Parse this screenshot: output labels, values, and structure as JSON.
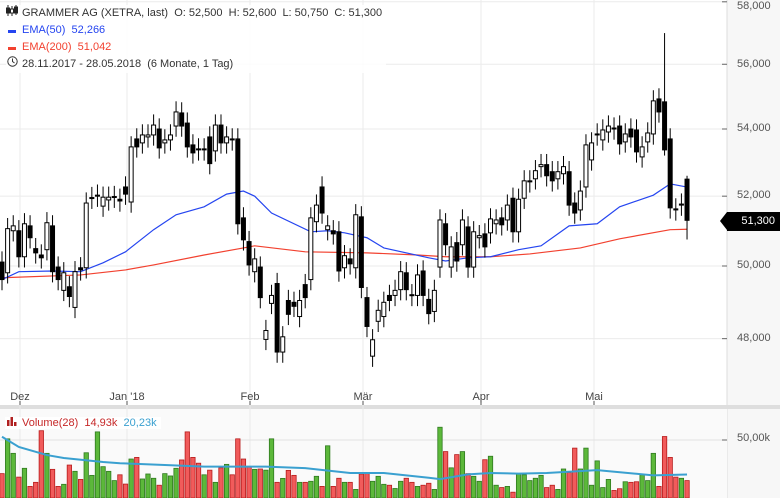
{
  "legend": {
    "title": "GRAMMER AG (XETRA, last)",
    "ohlc": "O: 52,500  H: 52,600  L: 50,750  C: 51,300",
    "ema50_label": "EMA(50)",
    "ema50_value": "52,266",
    "ema200_label": "EMA(200)",
    "ema200_value": "51,042",
    "range": "28.11.2017 - 28.05.2018",
    "period": "(6 Monate, 1 Tag)"
  },
  "volume_legend": {
    "label": "Volume(28)",
    "value": "14,93k",
    "ma_value": "20,23k"
  },
  "last_price": "51,300",
  "colors": {
    "ema50": "#2545f0",
    "ema200": "#f2412f",
    "vol_up": "#5cb83a",
    "vol_down": "#f15b5b",
    "vol_ma": "#3aa0d0"
  },
  "chart_data": {
    "type": "candlestick",
    "title": "GRAMMER AG (XETRA, last)",
    "x_ticks": [
      "Dez",
      "Jan '18",
      "Feb",
      "Mär",
      "Apr",
      "Mai"
    ],
    "y_ticks": [
      "58,000",
      "56,000",
      "54,000",
      "52,000",
      "50,000",
      "48,000"
    ],
    "y_tick_values": [
      58000,
      56000,
      54000,
      52000,
      50000,
      48000
    ],
    "scale": "log",
    "grid": true,
    "candles": [
      [
        50110,
        49620
      ],
      [
        49810,
        51060
      ],
      [
        51000,
        51140
      ],
      [
        51000,
        50260
      ],
      [
        50260,
        51200
      ],
      [
        51140,
        50800
      ],
      [
        50490,
        50370
      ],
      [
        50310,
        50230
      ],
      [
        50460,
        51230
      ],
      [
        51140,
        49840
      ],
      [
        49970,
        49620
      ],
      [
        49320,
        49810
      ],
      [
        49420,
        49150
      ],
      [
        48850,
        49840
      ],
      [
        49950,
        49890
      ],
      [
        49950,
        51800
      ],
      [
        51940,
        51960
      ],
      [
        52000,
        52030
      ],
      [
        51710,
        51970
      ],
      [
        51890,
        51970
      ],
      [
        51970,
        51990
      ],
      [
        51910,
        51860
      ],
      [
        52270,
        52060
      ],
      [
        51830,
        53460
      ],
      [
        53700,
        53460
      ],
      [
        53580,
        53820
      ],
      [
        53760,
        53820
      ],
      [
        53820,
        54120
      ],
      [
        54000,
        53430
      ],
      [
        53580,
        53670
      ],
      [
        53670,
        53820
      ],
      [
        54090,
        54520
      ],
      [
        54490,
        54090
      ],
      [
        54180,
        53460
      ],
      [
        53520,
        53280
      ],
      [
        53400,
        53370
      ],
      [
        53370,
        53400
      ],
      [
        53760,
        52960
      ],
      [
        53340,
        54120
      ],
      [
        54120,
        53580
      ],
      [
        53580,
        53760
      ],
      [
        53700,
        53670
      ],
      [
        53700,
        51200
      ],
      [
        51370,
        50740
      ],
      [
        50690,
        50030
      ],
      [
        49840,
        50200
      ],
      [
        49970,
        49120
      ],
      [
        47980,
        48220
      ],
      [
        48960,
        49180
      ],
      [
        49510,
        47640
      ],
      [
        47640,
        48050
      ],
      [
        49040,
        48660
      ],
      [
        48990,
        48880
      ],
      [
        48600,
        49040
      ],
      [
        49480,
        49120
      ],
      [
        49620,
        51370
      ],
      [
        51260,
        51740
      ],
      [
        52270,
        51510
      ],
      [
        51030,
        51140
      ],
      [
        51000,
        50910
      ],
      [
        50970,
        49860
      ],
      [
        49950,
        50290
      ],
      [
        50200,
        50060
      ],
      [
        49950,
        51460
      ],
      [
        51400,
        49400
      ],
      [
        49120,
        48330
      ],
      [
        47530,
        47970
      ],
      [
        48470,
        48770
      ],
      [
        48600,
        48990
      ],
      [
        49180,
        49040
      ],
      [
        49180,
        49320
      ],
      [
        49340,
        49840
      ],
      [
        49810,
        49340
      ],
      [
        49200,
        49180
      ],
      [
        49180,
        49750
      ],
      [
        49860,
        49180
      ],
      [
        49070,
        48680
      ],
      [
        48740,
        49320
      ],
      [
        49970,
        51310
      ],
      [
        51200,
        50600
      ],
      [
        49970,
        50540
      ],
      [
        50660,
        50140
      ],
      [
        50600,
        51310
      ],
      [
        51110,
        49970
      ],
      [
        49970,
        50970
      ],
      [
        50800,
        50860
      ],
      [
        50910,
        50540
      ],
      [
        50940,
        51340
      ],
      [
        51200,
        51310
      ],
      [
        51370,
        51170
      ],
      [
        51310,
        51740
      ],
      [
        51940,
        50970
      ],
      [
        50970,
        51910
      ],
      [
        51940,
        52450
      ],
      [
        52420,
        52450
      ],
      [
        52510,
        52750
      ],
      [
        52870,
        52930
      ],
      [
        52930,
        52600
      ],
      [
        52720,
        52450
      ],
      [
        52510,
        52720
      ],
      [
        52660,
        52870
      ],
      [
        52720,
        51740
      ],
      [
        51800,
        51510
      ],
      [
        51600,
        52150
      ],
      [
        52270,
        53520
      ],
      [
        53070,
        53580
      ],
      [
        53820,
        53850
      ],
      [
        53670,
        53970
      ],
      [
        53910,
        54090
      ],
      [
        54030,
        54000
      ],
      [
        54090,
        53550
      ],
      [
        53610,
        53850
      ],
      [
        54000,
        53760
      ],
      [
        53970,
        53310
      ],
      [
        53160,
        53460
      ],
      [
        53610,
        53880
      ],
      [
        53850,
        54860
      ],
      [
        54920,
        54520
      ],
      [
        54830,
        53370,
        56990,
        53200
      ],
      [
        53700,
        51660
      ],
      [
        51630,
        51600
      ],
      [
        51740,
        51770
      ],
      [
        52500,
        51300,
        52600,
        50750
      ]
    ],
    "ema50": [
      [
        0,
        49620
      ],
      [
        3,
        49840
      ],
      [
        9,
        49860
      ],
      [
        14,
        49840
      ],
      [
        18,
        50090
      ],
      [
        22,
        50400
      ],
      [
        27,
        51030
      ],
      [
        31,
        51460
      ],
      [
        36,
        51690
      ],
      [
        40,
        52060
      ],
      [
        43,
        52150
      ],
      [
        45,
        52000
      ],
      [
        48,
        51510
      ],
      [
        55,
        50970
      ],
      [
        58,
        51000
      ],
      [
        61,
        50940
      ],
      [
        65,
        50800
      ],
      [
        68,
        50510
      ],
      [
        76,
        50230
      ],
      [
        79,
        50140
      ],
      [
        83,
        50230
      ],
      [
        87,
        50260
      ],
      [
        92,
        50460
      ],
      [
        96,
        50570
      ],
      [
        101,
        51140
      ],
      [
        106,
        51200
      ],
      [
        110,
        51690
      ],
      [
        116,
        52030
      ],
      [
        119,
        52360
      ],
      [
        120,
        52330
      ],
      [
        122,
        52266
      ]
    ],
    "ema200": [
      [
        0,
        49670
      ],
      [
        14,
        49750
      ],
      [
        22,
        49890
      ],
      [
        27,
        50030
      ],
      [
        36,
        50310
      ],
      [
        43,
        50510
      ],
      [
        45,
        50570
      ],
      [
        54,
        50400
      ],
      [
        65,
        50370
      ],
      [
        74,
        50310
      ],
      [
        79,
        50260
      ],
      [
        87,
        50260
      ],
      [
        94,
        50340
      ],
      [
        103,
        50510
      ],
      [
        110,
        50770
      ],
      [
        119,
        51030
      ],
      [
        122,
        51042
      ]
    ],
    "volume_y_tick": "50,00k",
    "volume_k": [
      21,
      51,
      38.5,
      18,
      25.6,
      10,
      13.5,
      58,
      38.5,
      24.7,
      10,
      11.8,
      28.4,
      23,
      16,
      39,
      19.5,
      57,
      27,
      23,
      15,
      20,
      12,
      33.6,
      35,
      16.4,
      20.7,
      17,
      11,
      21,
      19,
      25.6,
      32.8,
      57,
      35,
      30,
      20,
      24,
      13.5,
      26,
      29,
      20,
      51,
      33.6,
      26.7,
      24.7,
      25,
      24,
      51,
      13.5,
      16.9,
      23.8,
      19.5,
      13.5,
      13.5,
      14.4,
      18.7,
      10,
      45,
      10,
      17,
      13.5,
      13.5,
      7.4,
      20.7,
      21,
      14.4,
      18.7,
      11.8,
      11,
      8.2,
      14.4,
      17,
      13.5,
      10,
      11,
      12.7,
      7.4,
      61,
      40,
      26,
      37.4,
      40,
      21,
      18.7,
      14.4,
      33,
      36,
      11,
      9,
      10,
      5,
      21,
      20,
      15,
      17,
      19.5,
      9,
      11,
      7.4,
      25,
      22,
      43,
      25,
      43,
      11,
      32,
      9,
      16,
      6.5,
      8,
      14,
      13.5,
      14,
      20,
      15,
      38.5,
      10,
      53,
      35,
      18,
      17,
      15
    ],
    "volume_ma_k": [
      [
        0,
        52.8
      ],
      [
        3,
        44
      ],
      [
        8,
        37
      ],
      [
        11,
        34.5
      ],
      [
        18,
        31
      ],
      [
        21,
        30
      ],
      [
        29,
        28.4
      ],
      [
        36,
        27
      ],
      [
        47,
        27
      ],
      [
        54,
        25.8
      ],
      [
        62,
        21.6
      ],
      [
        68,
        21.6
      ],
      [
        76,
        17.5
      ],
      [
        78,
        16.3
      ],
      [
        83,
        20.4
      ],
      [
        87,
        21.6
      ],
      [
        92,
        21
      ],
      [
        97,
        21.6
      ],
      [
        106,
        24
      ],
      [
        116,
        19.5
      ],
      [
        122,
        20.23
      ]
    ]
  }
}
